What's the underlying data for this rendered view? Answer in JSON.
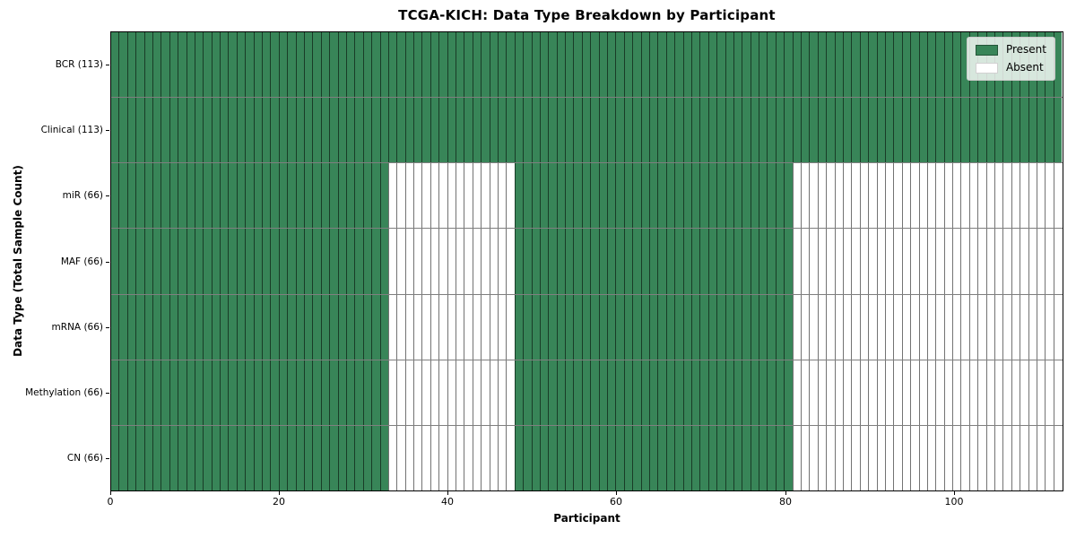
{
  "chart_data": {
    "type": "heatmap",
    "title": "TCGA-KICH: Data Type Breakdown by Participant",
    "xlabel": "Participant",
    "ylabel": "Data Type (Total Sample Count)",
    "x_ticks": [
      0,
      20,
      40,
      60,
      80,
      100
    ],
    "x_range": [
      0,
      113
    ],
    "n_participants": 113,
    "grid_on": true,
    "legend_position": "upper-right",
    "colors": {
      "present": "#388558",
      "absent": "#ffffff",
      "cell_edge": "rgba(0,0,0,0.55)",
      "row_divider": "rgba(0,0,0,0.5)",
      "legend_border": "#cccccc",
      "legend_background": "rgba(255,255,255,0.8)"
    },
    "legend": {
      "entries": [
        {
          "key": "present",
          "label": "Present"
        },
        {
          "key": "absent",
          "label": "Absent"
        }
      ]
    },
    "rows": [
      {
        "data_type": "BCR",
        "label": "BCR (113)",
        "total_samples": 113,
        "present_ranges": [
          [
            0,
            113
          ]
        ]
      },
      {
        "data_type": "Clinical",
        "label": "Clinical (113)",
        "total_samples": 113,
        "present_ranges": [
          [
            0,
            113
          ]
        ]
      },
      {
        "data_type": "miR",
        "label": "miR (66)",
        "total_samples": 66,
        "present_ranges": [
          [
            0,
            33
          ],
          [
            48,
            81
          ]
        ]
      },
      {
        "data_type": "MAF",
        "label": "MAF (66)",
        "total_samples": 66,
        "present_ranges": [
          [
            0,
            33
          ],
          [
            48,
            81
          ]
        ]
      },
      {
        "data_type": "mRNA",
        "label": "mRNA (66)",
        "total_samples": 66,
        "present_ranges": [
          [
            0,
            33
          ],
          [
            48,
            81
          ]
        ]
      },
      {
        "data_type": "Methylation",
        "label": "Methylation (66)",
        "total_samples": 66,
        "present_ranges": [
          [
            0,
            33
          ],
          [
            48,
            81
          ]
        ]
      },
      {
        "data_type": "CN",
        "label": "CN (66)",
        "total_samples": 66,
        "present_ranges": [
          [
            0,
            33
          ],
          [
            48,
            81
          ]
        ]
      }
    ]
  }
}
